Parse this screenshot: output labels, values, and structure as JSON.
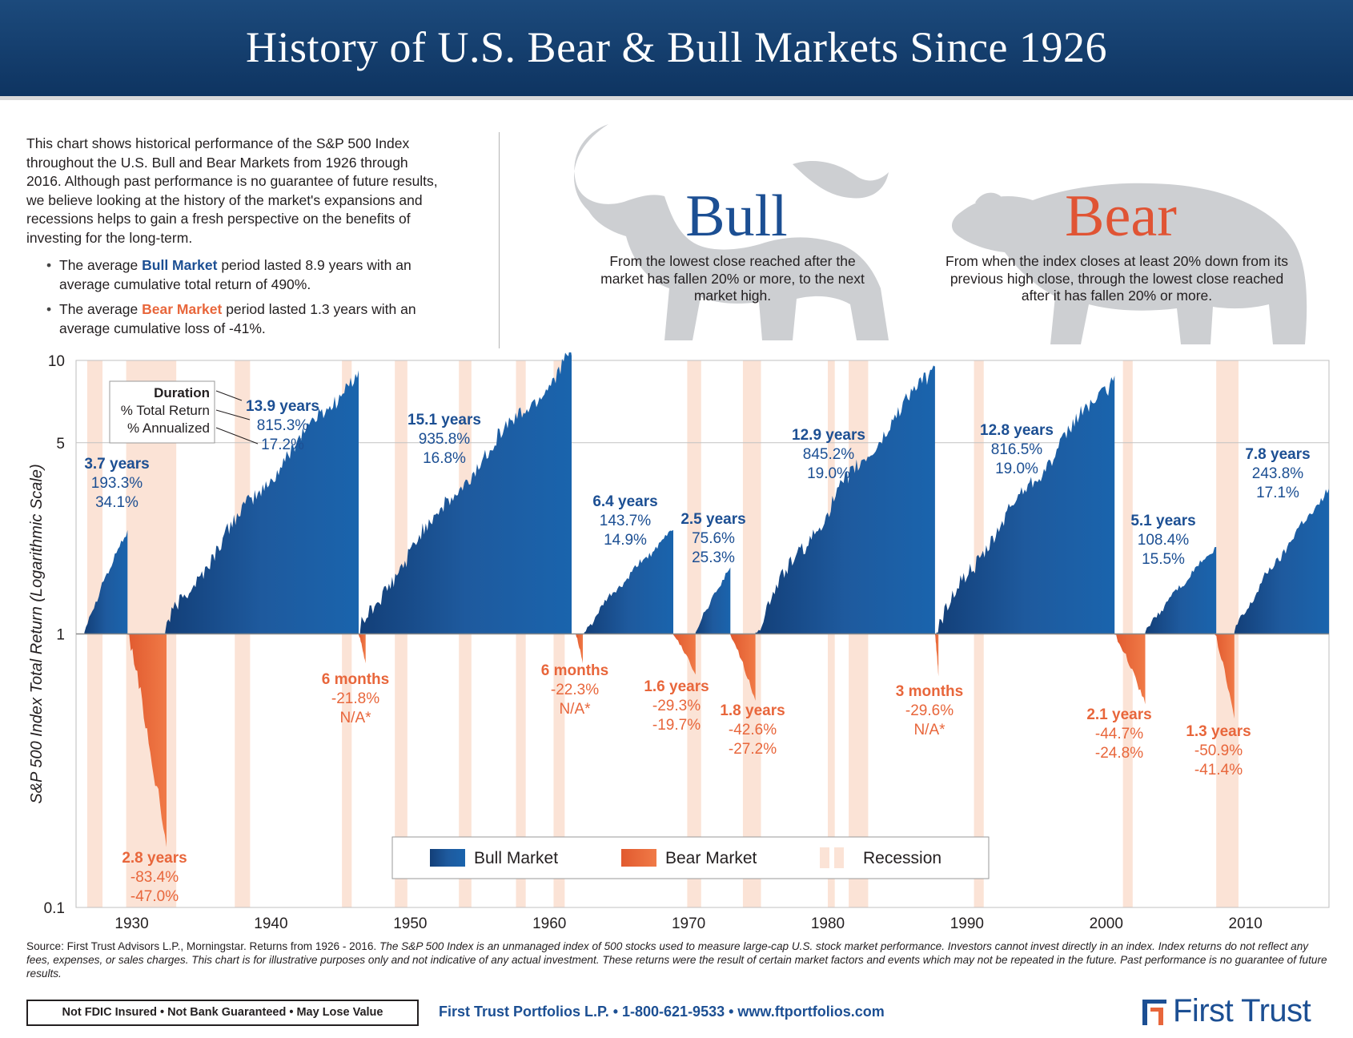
{
  "header": {
    "title": "History of U.S. Bear & Bull Markets Since 1926"
  },
  "intro": {
    "paragraph": "This chart shows historical performance of the S&P 500 Index throughout the U.S. Bull and Bear Markets from 1926 through 2016. Although past performance is no guarantee of future results, we believe looking at the history of the market's expansions and recessions helps to gain a fresh perspective on the benefits of investing for the long-term.",
    "bullet1_pre": "The average ",
    "bullet1_key": "Bull Market",
    "bullet1_post": " period lasted 8.9 years with an average cumulative total return of 490%.",
    "bullet2_pre": "The average ",
    "bullet2_key": "Bear Market",
    "bullet2_post": " period lasted 1.3 years with an average cumulative loss of -41%."
  },
  "bull": {
    "word": "Bull",
    "desc": "From the lowest close reached after the market has fallen 20% or more, to the next market high."
  },
  "bear": {
    "word": "Bear",
    "desc": "From when the index closes at least 20% down from its previous high close, through the lowest close reached after it has fallen 20% or more."
  },
  "colors": {
    "bull": "#1c4f93",
    "bull_dark": "#0f3e75",
    "bear": "#e8663b",
    "recession": "#fbe3d6",
    "header": "#11386a"
  },
  "chart_data": {
    "type": "area",
    "title": "",
    "ylabel": "S&P 500 Index Total Return (Logarithmic Scale)",
    "y_scale": "log",
    "ylim": [
      0.1,
      10
    ],
    "xlim": [
      1926,
      2016
    ],
    "y_ticks": [
      "10",
      "5",
      "1",
      "0.1"
    ],
    "y_tick_values": [
      10,
      5,
      1,
      0.1
    ],
    "x_ticks": [
      "1930",
      "1940",
      "1950",
      "1960",
      "1970",
      "1980",
      "1990",
      "2000",
      "2010"
    ],
    "x_tick_values": [
      1930,
      1940,
      1950,
      1960,
      1970,
      1980,
      1990,
      2000,
      2010
    ],
    "grid": true,
    "legend": {
      "placement": "bottom-center",
      "bull": "Bull Market",
      "bear": "Bear Market",
      "recession": "Recession"
    },
    "key_box": {
      "line1": "Duration",
      "line2": "% Total Return",
      "line3": "% Annualized"
    },
    "bull_markets": [
      {
        "start": 1926.6,
        "end": 1929.7,
        "peak": 2.4,
        "duration": "3.7 years",
        "total": "193.3%",
        "annualized": "34.1%"
      },
      {
        "start": 1932.4,
        "end": 1946.3,
        "peak": 9.2,
        "duration": "13.9 years",
        "total": "815.3%",
        "annualized": "17.2%"
      },
      {
        "start": 1946.4,
        "end": 1961.6,
        "peak": 10.4,
        "duration": "15.1 years",
        "total": "935.8%",
        "annualized": "16.8%"
      },
      {
        "start": 1962.5,
        "end": 1968.9,
        "peak": 2.4,
        "duration": "6.4 years",
        "total": "143.7%",
        "annualized": "14.9%"
      },
      {
        "start": 1970.5,
        "end": 1973.0,
        "peak": 1.75,
        "duration": "2.5 years",
        "total": "75.6%",
        "annualized": "25.3%"
      },
      {
        "start": 1974.8,
        "end": 1987.7,
        "peak": 9.5,
        "duration": "12.9 years",
        "total": "845.2%",
        "annualized": "19.0%"
      },
      {
        "start": 1987.8,
        "end": 2000.6,
        "peak": 8.8,
        "duration": "12.8 years",
        "total": "816.5%",
        "annualized": "19.0%"
      },
      {
        "start": 2002.8,
        "end": 2007.9,
        "peak": 2.08,
        "duration": "5.1 years",
        "total": "108.4%",
        "annualized": "15.5%"
      },
      {
        "start": 2009.2,
        "end": 2016.0,
        "peak": 3.4,
        "duration": "7.8 years",
        "total": "243.8%",
        "annualized": "17.1%"
      }
    ],
    "bear_markets": [
      {
        "start": 1929.7,
        "end": 1932.5,
        "trough": 0.166,
        "duration": "2.8 years",
        "total": "-83.4%",
        "annualized": "-47.0%"
      },
      {
        "start": 1946.3,
        "end": 1946.8,
        "trough": 0.78,
        "duration": "6 months",
        "total": "-21.8%",
        "annualized": "N/A*"
      },
      {
        "start": 1961.9,
        "end": 1962.4,
        "trough": 0.78,
        "duration": "6 months",
        "total": "-22.3%",
        "annualized": "N/A*"
      },
      {
        "start": 1968.9,
        "end": 1970.5,
        "trough": 0.71,
        "duration": "1.6 years",
        "total": "-29.3%",
        "annualized": "-19.7%"
      },
      {
        "start": 1973.0,
        "end": 1974.8,
        "trough": 0.57,
        "duration": "1.8 years",
        "total": "-42.6%",
        "annualized": "-27.2%"
      },
      {
        "start": 1987.7,
        "end": 1987.95,
        "trough": 0.7,
        "duration": "3 months",
        "total": "-29.6%",
        "annualized": "N/A*"
      },
      {
        "start": 2000.6,
        "end": 2002.8,
        "trough": 0.553,
        "duration": "2.1 years",
        "total": "-44.7%",
        "annualized": "-24.8%"
      },
      {
        "start": 2007.8,
        "end": 2009.2,
        "trough": 0.49,
        "duration": "1.3 years",
        "total": "-50.9%",
        "annualized": "-41.4%"
      }
    ],
    "recessions": [
      [
        1926.8,
        1927.9
      ],
      [
        1929.6,
        1933.2
      ],
      [
        1937.4,
        1938.5
      ],
      [
        1945.1,
        1945.8
      ],
      [
        1948.9,
        1949.8
      ],
      [
        1953.5,
        1954.4
      ],
      [
        1957.6,
        1958.3
      ],
      [
        1960.3,
        1961.1
      ],
      [
        1969.9,
        1970.9
      ],
      [
        1973.9,
        1975.2
      ],
      [
        1980.0,
        1980.5
      ],
      [
        1981.5,
        1982.9
      ],
      [
        1990.5,
        1991.2
      ],
      [
        2001.2,
        2001.9
      ],
      [
        2007.9,
        2009.5
      ]
    ]
  },
  "footer": {
    "source_plain": "Source: First Trust Advisors L.P., Morningstar. Returns from 1926 - 2016. ",
    "source_italic": "The S&P 500 Index is an unmanaged index of 500 stocks used to measure large-cap U.S. stock market performance. Investors cannot invest directly in an index. Index returns do not reflect any fees, expenses, or sales charges. This chart is for illustrative purposes only and not indicative of any actual investment. These returns were the result of certain market factors and events which may not be repeated in the future. Past performance is no guarantee of future results.",
    "fdic": "Not FDIC Insured • Not Bank Guaranteed • May Lose Value",
    "contact": "First Trust Portfolios L.P. • 1-800-621-9533 • www.ftportfolios.com",
    "brand": "First Trust"
  }
}
